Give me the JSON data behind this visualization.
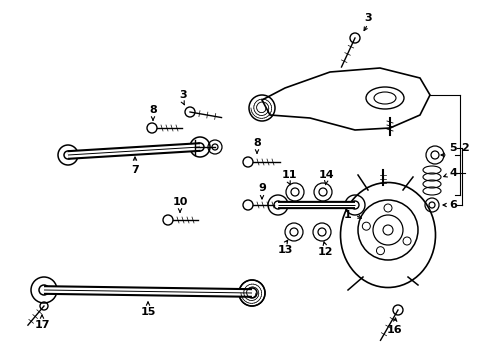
{
  "bg": "#ffffff",
  "lc": "#000000",
  "fig_w": 4.89,
  "fig_h": 3.6,
  "dpi": 100
}
